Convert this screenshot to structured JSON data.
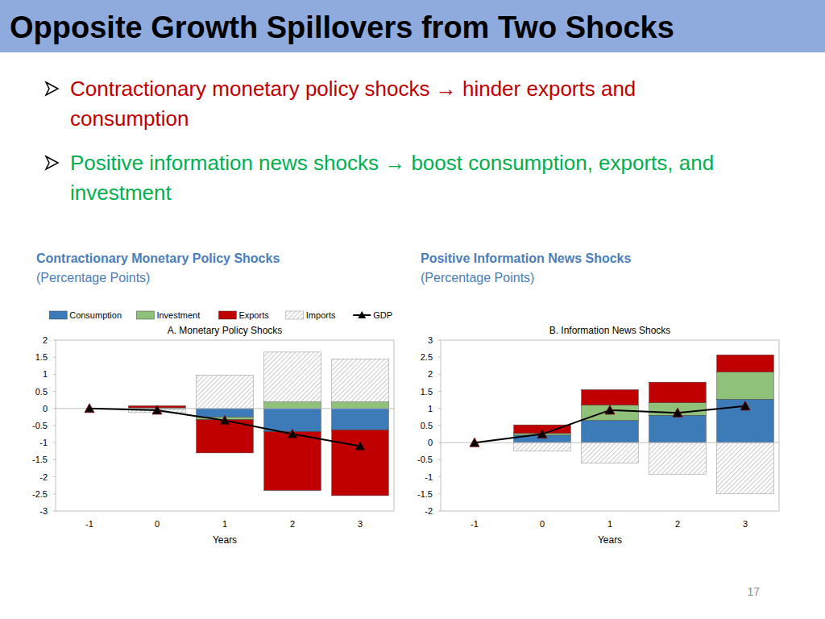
{
  "slide": {
    "title": "Opposite Growth Spillovers from Two Shocks",
    "bullets": [
      {
        "text": "Contractionary monetary policy shocks → hinder exports and consumption",
        "color": "#c00000"
      },
      {
        "text": "Positive information news shocks → boost consumption, exports, and investment",
        "color": "#00b050"
      }
    ],
    "page_number": "17"
  },
  "chart_data": [
    {
      "type": "bar",
      "stacked": true,
      "heading": "Contractionary Monetary Policy Shocks",
      "units": "(Percentage Points)",
      "title": "A. Monetary Policy Shocks",
      "x_label": "Years",
      "categories": [
        "-1",
        "0",
        "1",
        "2",
        "3"
      ],
      "series": [
        {
          "name": "Consumption",
          "color": "#3d7ab8",
          "values": [
            null,
            -0.02,
            -0.25,
            -0.68,
            -0.63
          ]
        },
        {
          "name": "Investment",
          "color": "#8fc17a",
          "values": [
            null,
            0.02,
            -0.08,
            0.2,
            0.2
          ]
        },
        {
          "name": "Exports",
          "color": "#c00000",
          "values": [
            null,
            0.06,
            -0.97,
            -1.72,
            -1.92
          ]
        },
        {
          "name": "Imports",
          "color": "#a6a6a6",
          "line_style": "hatched",
          "values": [
            null,
            -0.1,
            0.97,
            1.45,
            1.25
          ]
        },
        {
          "name": "GDP",
          "type": "line",
          "color": "#000000",
          "marker": "triangle",
          "values": [
            0,
            -0.05,
            -0.35,
            -0.75,
            -1.1
          ]
        }
      ],
      "ylim": [
        -3,
        2
      ],
      "yticks": [
        -3,
        -2.5,
        -2,
        -1.5,
        -1,
        -0.5,
        0,
        0.5,
        1,
        1.5,
        2
      ],
      "grid": false,
      "legend": "top"
    },
    {
      "type": "bar",
      "stacked": true,
      "heading": "Positive Information News Shocks",
      "units": "(Percentage Points)",
      "title": "B. Information News Shocks",
      "x_label": "Years",
      "categories": [
        "-1",
        "0",
        "1",
        "2",
        "3"
      ],
      "series": [
        {
          "name": "Consumption",
          "color": "#3d7ab8",
          "values": [
            null,
            0.22,
            0.65,
            0.8,
            1.27
          ]
        },
        {
          "name": "Investment",
          "color": "#8fc17a",
          "values": [
            null,
            0.05,
            0.45,
            0.37,
            0.8
          ]
        },
        {
          "name": "Exports",
          "color": "#c00000",
          "values": [
            null,
            0.25,
            0.45,
            0.6,
            0.5
          ]
        },
        {
          "name": "Imports",
          "color": "#a6a6a6",
          "line_style": "hatched",
          "values": [
            null,
            -0.25,
            -0.6,
            -0.92,
            -1.5
          ]
        },
        {
          "name": "GDP",
          "type": "line",
          "color": "#000000",
          "marker": "triangle",
          "values": [
            0,
            0.25,
            0.95,
            0.87,
            1.07
          ]
        }
      ],
      "ylim": [
        -2,
        3
      ],
      "yticks": [
        -2,
        -1.5,
        -1,
        -0.5,
        0,
        0.5,
        1,
        1.5,
        2,
        2.5,
        3
      ],
      "grid": false
    }
  ]
}
